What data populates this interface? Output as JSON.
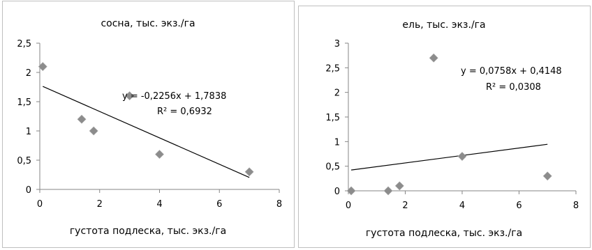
{
  "chart_data": [
    {
      "type": "scatter",
      "title": "сосна, тыс. экз./га",
      "xlabel": "густота подлеска, тыс. экз./га",
      "ylabel": "",
      "xlim": [
        0,
        8
      ],
      "ylim": [
        0,
        2.5
      ],
      "x_ticks": [
        "0",
        "2",
        "4",
        "6",
        "8"
      ],
      "y_ticks": [
        "0",
        "0,5",
        "1",
        "1,5",
        "2",
        "2,5"
      ],
      "points": [
        {
          "x": 0.1,
          "y": 2.1
        },
        {
          "x": 1.4,
          "y": 1.2
        },
        {
          "x": 1.8,
          "y": 1.0
        },
        {
          "x": 3.0,
          "y": 1.6
        },
        {
          "x": 4.0,
          "y": 0.6
        },
        {
          "x": 7.0,
          "y": 0.3
        }
      ],
      "trendline": {
        "slope": -0.2256,
        "intercept": 1.7838,
        "x_from": 0.1,
        "x_to": 7.0
      },
      "equation": "y = -0,2256x + 1,7838",
      "r2": "R² = 0,6932",
      "grid": false,
      "colors": {
        "marker": "#8c8c8c",
        "line": "#000000",
        "frame": "#bfbfbf",
        "axis": "#868686"
      }
    },
    {
      "type": "scatter",
      "title": "ель, тыс. экз./га",
      "xlabel": "густота подлеска, тыс. экз./га",
      "ylabel": "",
      "xlim": [
        0,
        8
      ],
      "ylim": [
        0,
        3
      ],
      "x_ticks": [
        "0",
        "2",
        "4",
        "6",
        "8"
      ],
      "y_ticks": [
        "0",
        "0,5",
        "1",
        "1,5",
        "2",
        "2,5",
        "3"
      ],
      "points": [
        {
          "x": 0.1,
          "y": 0.0
        },
        {
          "x": 1.4,
          "y": 0.0
        },
        {
          "x": 1.8,
          "y": 0.1
        },
        {
          "x": 3.0,
          "y": 2.7
        },
        {
          "x": 4.0,
          "y": 0.7
        },
        {
          "x": 7.0,
          "y": 0.3
        }
      ],
      "trendline": {
        "slope": 0.0758,
        "intercept": 0.4148,
        "x_from": 0.1,
        "x_to": 7.0
      },
      "equation": "y = 0,0758x + 0,4148",
      "r2": "R² = 0,0308",
      "grid": false,
      "colors": {
        "marker": "#8c8c8c",
        "line": "#000000",
        "frame": "#bfbfbf",
        "axis": "#868686"
      }
    }
  ]
}
